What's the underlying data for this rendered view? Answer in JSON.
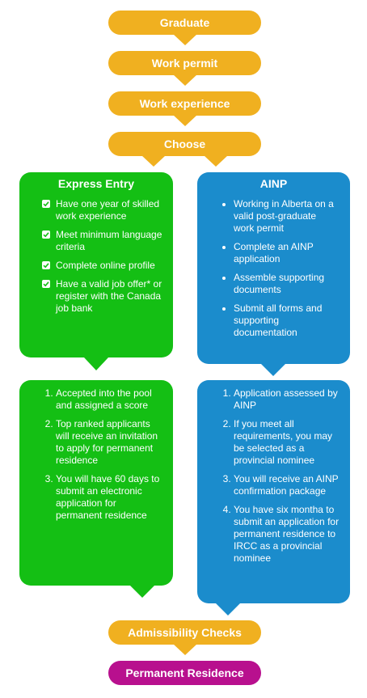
{
  "steps": {
    "graduate": "Graduate",
    "work_permit": "Work permit",
    "work_experience": "Work experience",
    "choose": "Choose",
    "admissibility": "Admissibility Checks",
    "permanent_residence": "Permanent Residence"
  },
  "express_entry": {
    "title": "Express Entry",
    "requirements": [
      "Have one year of skilled work experience",
      "Meet minimum language criteria",
      "Complete online profile",
      "Have a valid job offer* or register with the Canada job bank"
    ],
    "process": [
      "Accepted into the pool and assigned a score",
      "Top ranked applicants will receive an invitation to apply for permanent residence",
      "You will have 60 days to submit an electronic application for permanent residence"
    ]
  },
  "ainp": {
    "title": "AINP",
    "requirements": [
      "Working in Alberta on a valid post-graduate work permit",
      "Complete an AINP application",
      "Assemble supporting documents",
      "Submit all forms and supporting documentation"
    ],
    "process": [
      "Application assessed by AINP",
      "If you meet all requirements, you may be selected as a provincial nominee",
      "You will receive an AINP confirmation package",
      "You have six montha to submit an application for permanent residence to IRCC as a provincial nominee"
    ]
  },
  "colors": {
    "step": "#f0b020",
    "final": "#b8108e",
    "express_entry": "#14bf14",
    "ainp": "#1b8ccc"
  }
}
